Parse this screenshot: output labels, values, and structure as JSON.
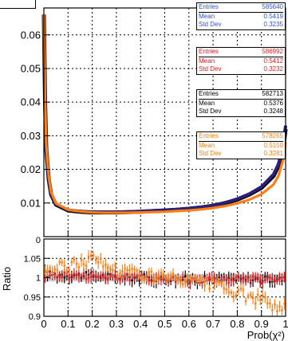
{
  "chart_data": [
    {
      "type": "line",
      "panel": "main",
      "x": [
        0.0,
        0.005,
        0.01,
        0.02,
        0.03,
        0.05,
        0.1,
        0.15,
        0.2,
        0.25,
        0.3,
        0.35,
        0.4,
        0.45,
        0.5,
        0.55,
        0.6,
        0.65,
        0.7,
        0.75,
        0.8,
        0.85,
        0.9,
        0.95,
        0.97,
        0.99,
        1.0
      ],
      "series": [
        {
          "name": "",
          "color": "#000000",
          "values": [
            0.066,
            0.04,
            0.026,
            0.017,
            0.0125,
            0.0095,
            0.0078,
            0.0074,
            0.0072,
            0.0072,
            0.0072,
            0.0073,
            0.0074,
            0.0076,
            0.0078,
            0.008,
            0.0083,
            0.0087,
            0.0092,
            0.01,
            0.011,
            0.0125,
            0.0145,
            0.018,
            0.021,
            0.026,
            0.032
          ]
        },
        {
          "name": "",
          "color": "#2b1f7a",
          "values": [
            0.066,
            0.04,
            0.026,
            0.017,
            0.0125,
            0.0096,
            0.0079,
            0.0075,
            0.0073,
            0.0073,
            0.0073,
            0.0074,
            0.0075,
            0.0077,
            0.0079,
            0.0081,
            0.0084,
            0.0088,
            0.0093,
            0.0101,
            0.0112,
            0.0127,
            0.0148,
            0.0185,
            0.0215,
            0.027,
            0.033
          ]
        },
        {
          "name": "",
          "color": "#ff7f14",
          "values": [
            0.066,
            0.041,
            0.027,
            0.018,
            0.0132,
            0.0099,
            0.008,
            0.0075,
            0.0072,
            0.0071,
            0.0071,
            0.0071,
            0.0072,
            0.0073,
            0.0074,
            0.0076,
            0.0078,
            0.0081,
            0.0085,
            0.0091,
            0.0099,
            0.011,
            0.0126,
            0.0155,
            0.018,
            0.023,
            0.028
          ]
        }
      ],
      "ylim": [
        0,
        0.068
      ],
      "xlim": [
        0,
        1
      ],
      "y_ticks": [
        "0.01",
        "0.02",
        "0.03",
        "0.04",
        "0.05",
        "0.06"
      ],
      "grid": true
    },
    {
      "type": "scatter",
      "panel": "ratio",
      "ylabel": "Ratio",
      "xlabel": "Prob(χ²)",
      "ylim": [
        0.9,
        1.1
      ],
      "xlim": [
        0,
        1
      ],
      "y_ticks": [
        "0.9",
        "0.95",
        "1",
        "1.05"
      ],
      "x_ticks": [
        "0",
        "0.1",
        "0.2",
        "0.3",
        "0.4",
        "0.5",
        "0.6",
        "0.7",
        "0.8",
        "0.9",
        "1"
      ],
      "grid": true,
      "series": [
        {
          "name": "",
          "color": "#000000",
          "trend_x": [
            0,
            0.2,
            0.4,
            0.6,
            0.8,
            1.0
          ],
          "trend_y": [
            1.01,
            1.005,
            1.0,
            0.995,
            0.995,
            0.995
          ]
        },
        {
          "name": "",
          "color": "#e31a1c",
          "trend_x": [
            0,
            0.2,
            0.4,
            0.6,
            0.8,
            1.0
          ],
          "trend_y": [
            1.01,
            1.005,
            1.0,
            0.995,
            0.995,
            0.995
          ]
        },
        {
          "name": "",
          "color": "#ff7f14",
          "trend_x": [
            0,
            0.1,
            0.2,
            0.3,
            0.4,
            0.5,
            0.6,
            0.7,
            0.8,
            0.9,
            1.0
          ],
          "trend_y": [
            1.02,
            1.03,
            1.05,
            1.02,
            1.01,
            1.0,
            0.99,
            0.98,
            0.96,
            0.94,
            0.92
          ]
        }
      ]
    }
  ],
  "stats": [
    {
      "color": "#2f54d6",
      "entries_label": "Entries",
      "entries": "585640",
      "mean_label": "Mean",
      "mean": "0.5419",
      "std_label": "Std Dev",
      "std": "0.3235"
    },
    {
      "color": "#e31a1c",
      "entries_label": "Entries",
      "entries": "586992",
      "mean_label": "Mean",
      "mean": "0.5412",
      "std_label": "Std Dev",
      "std": "0.3232"
    },
    {
      "color": "#000000",
      "entries_label": "Entries",
      "entries": "582713",
      "mean_label": "Mean",
      "mean": "0.5376",
      "std_label": "Std Dev",
      "std": "0.3248"
    },
    {
      "color": "#ff7f14",
      "entries_label": "Entries",
      "entries": "578265",
      "mean_label": "Mean",
      "mean": "0.5159",
      "std_label": "Std Dev",
      "std": "0.3281"
    }
  ],
  "ratio_top_tick": "0"
}
